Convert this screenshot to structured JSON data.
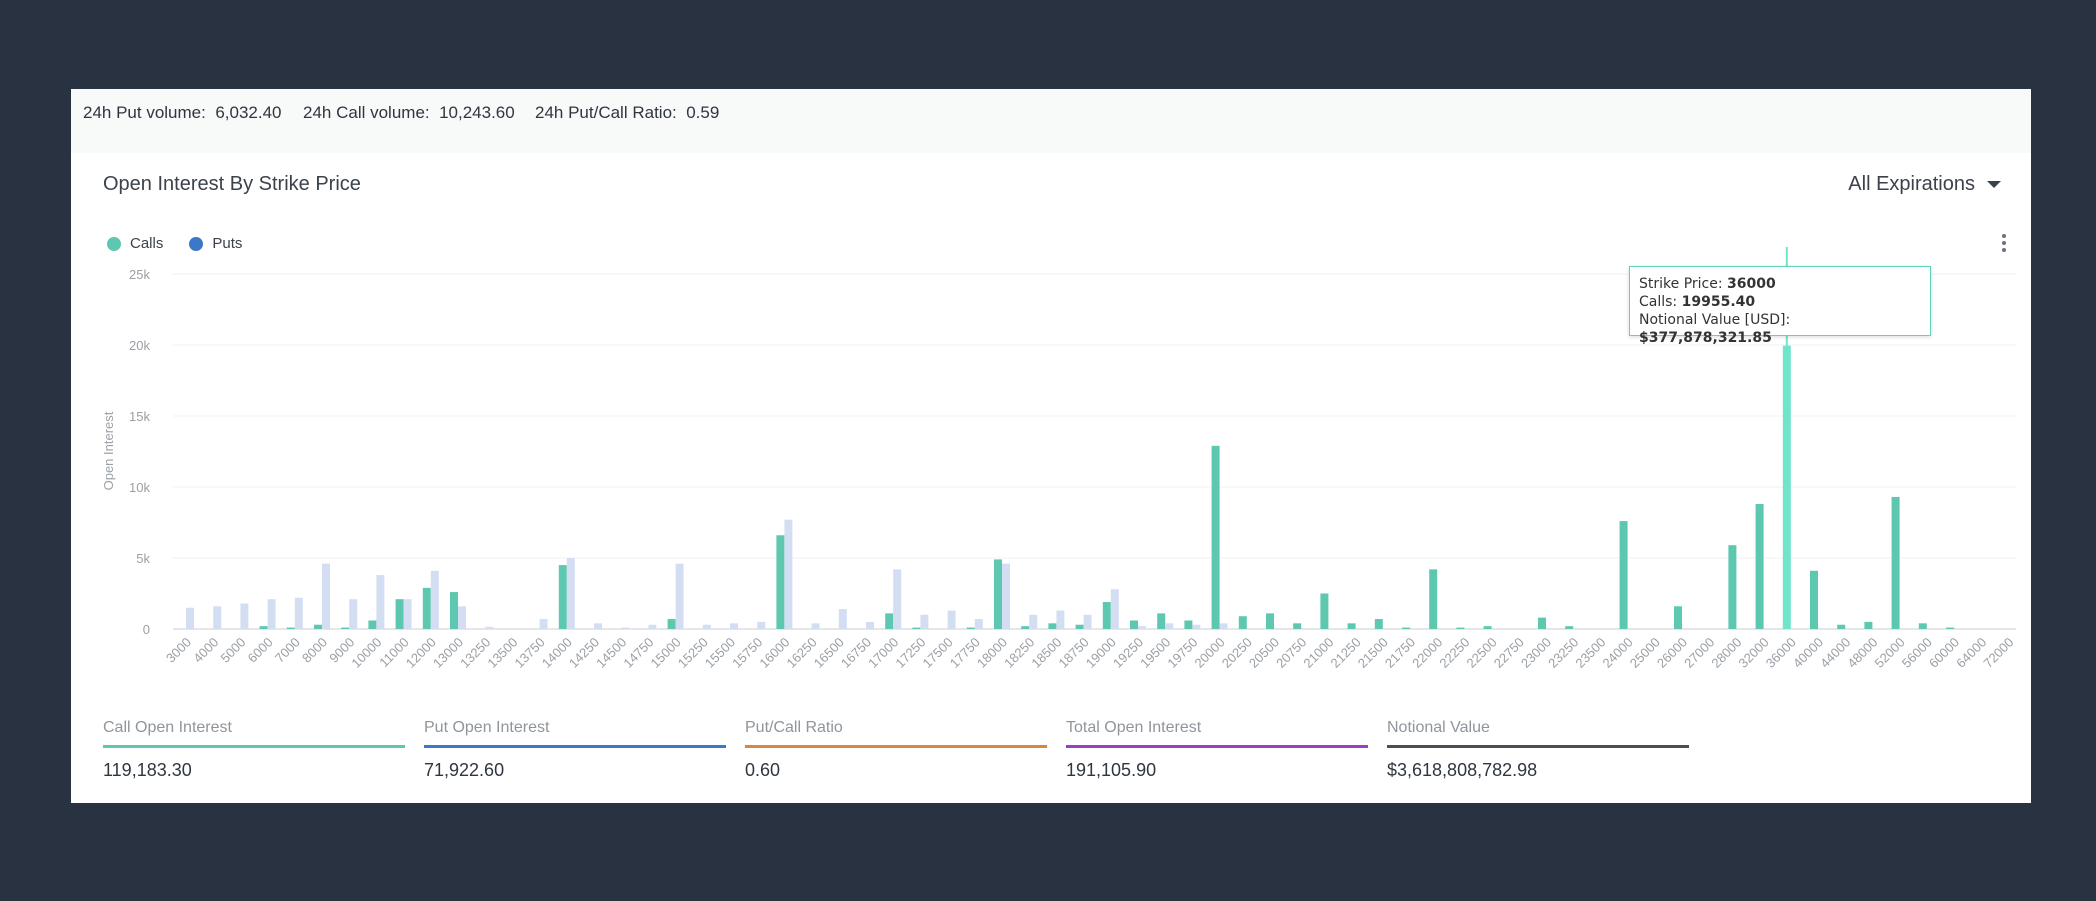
{
  "header": {
    "put_volume_label": "24h Put volume:",
    "put_volume_value": "6,032.40",
    "call_volume_label": "24h Call volume:",
    "call_volume_value": "10,243.60",
    "ratio_label": "24h Put/Call Ratio:",
    "ratio_value": "0.59"
  },
  "chart_title": "Open Interest By Strike Price",
  "expiration_select": {
    "selected": "All Expirations"
  },
  "legend": {
    "calls": "Calls",
    "puts": "Puts"
  },
  "colors": {
    "calls": "#5ec7af",
    "calls_highlight": "#71e4cc",
    "puts": "#d4def3",
    "puts_legend": "#3b78c8"
  },
  "tooltip": {
    "strike_label": "Strike Price:",
    "strike_value": "36000",
    "calls_label": "Calls:",
    "calls_value": "19955.40",
    "notional_label": "Notional Value [USD]:",
    "notional_value": "$377,878,321.85"
  },
  "chart_data": {
    "type": "bar",
    "title": "Open Interest By Strike Price",
    "xlabel": "",
    "ylabel": "Open Interest",
    "ylim": [
      0,
      25000
    ],
    "yticks": [
      0,
      5000,
      10000,
      15000,
      20000,
      25000
    ],
    "ytick_labels": [
      "0",
      "5k",
      "10k",
      "15k",
      "20k",
      "25k"
    ],
    "highlight": "36000",
    "categories": [
      "3000",
      "4000",
      "5000",
      "6000",
      "7000",
      "8000",
      "9000",
      "10000",
      "11000",
      "12000",
      "13000",
      "13250",
      "13500",
      "13750",
      "14000",
      "14250",
      "14500",
      "14750",
      "15000",
      "15250",
      "15500",
      "15750",
      "16000",
      "16250",
      "16500",
      "16750",
      "17000",
      "17250",
      "17500",
      "17750",
      "18000",
      "18250",
      "18500",
      "18750",
      "19000",
      "19250",
      "19500",
      "19750",
      "20000",
      "20250",
      "20500",
      "20750",
      "21000",
      "21250",
      "21500",
      "21750",
      "22000",
      "22250",
      "22500",
      "22750",
      "23000",
      "23250",
      "23500",
      "24000",
      "25000",
      "26000",
      "27000",
      "28000",
      "32000",
      "36000",
      "40000",
      "44000",
      "48000",
      "52000",
      "56000",
      "60000",
      "64000",
      "72000"
    ],
    "series": [
      {
        "name": "Calls",
        "values": [
          0,
          0,
          0,
          200,
          100,
          300,
          100,
          600,
          2100,
          2900,
          2600,
          0,
          0,
          0,
          4500,
          0,
          0,
          0,
          700,
          0,
          0,
          0,
          6600,
          0,
          0,
          0,
          1100,
          100,
          0,
          100,
          4900,
          200,
          400,
          300,
          1900,
          600,
          1100,
          600,
          12900,
          900,
          1100,
          400,
          2500,
          400,
          700,
          100,
          4200,
          100,
          200,
          0,
          800,
          200,
          0,
          7600,
          0,
          1600,
          0,
          5900,
          8800,
          19955.4,
          4100,
          300,
          500,
          9300,
          400,
          100,
          0,
          0
        ]
      },
      {
        "name": "Puts",
        "values": [
          1500,
          1600,
          1800,
          2100,
          2200,
          4600,
          2100,
          3800,
          2100,
          4100,
          1600,
          150,
          0,
          700,
          5000,
          400,
          100,
          300,
          4600,
          300,
          400,
          500,
          7700,
          400,
          1400,
          500,
          4200,
          1000,
          1300,
          700,
          4600,
          1000,
          1300,
          1000,
          2800,
          200,
          400,
          300,
          400,
          0,
          0,
          0,
          0,
          0,
          0,
          0,
          0,
          0,
          0,
          0,
          0,
          0,
          0,
          0,
          0,
          0,
          0,
          0,
          0,
          0,
          0,
          0,
          0,
          0,
          0,
          0,
          0,
          0
        ]
      }
    ]
  },
  "metrics": [
    {
      "label": "Call Open Interest",
      "value": "119,183.30",
      "color": "#5ec7af"
    },
    {
      "label": "Put Open Interest",
      "value": "71,922.60",
      "color": "#3b78c8"
    },
    {
      "label": "Put/Call Ratio",
      "value": "0.60",
      "color": "#d9883f"
    },
    {
      "label": "Total Open Interest",
      "value": "191,105.90",
      "color": "#9b3fc2"
    },
    {
      "label": "Notional Value",
      "value": "$3,618,808,782.98",
      "color": "#4a4f56"
    }
  ]
}
